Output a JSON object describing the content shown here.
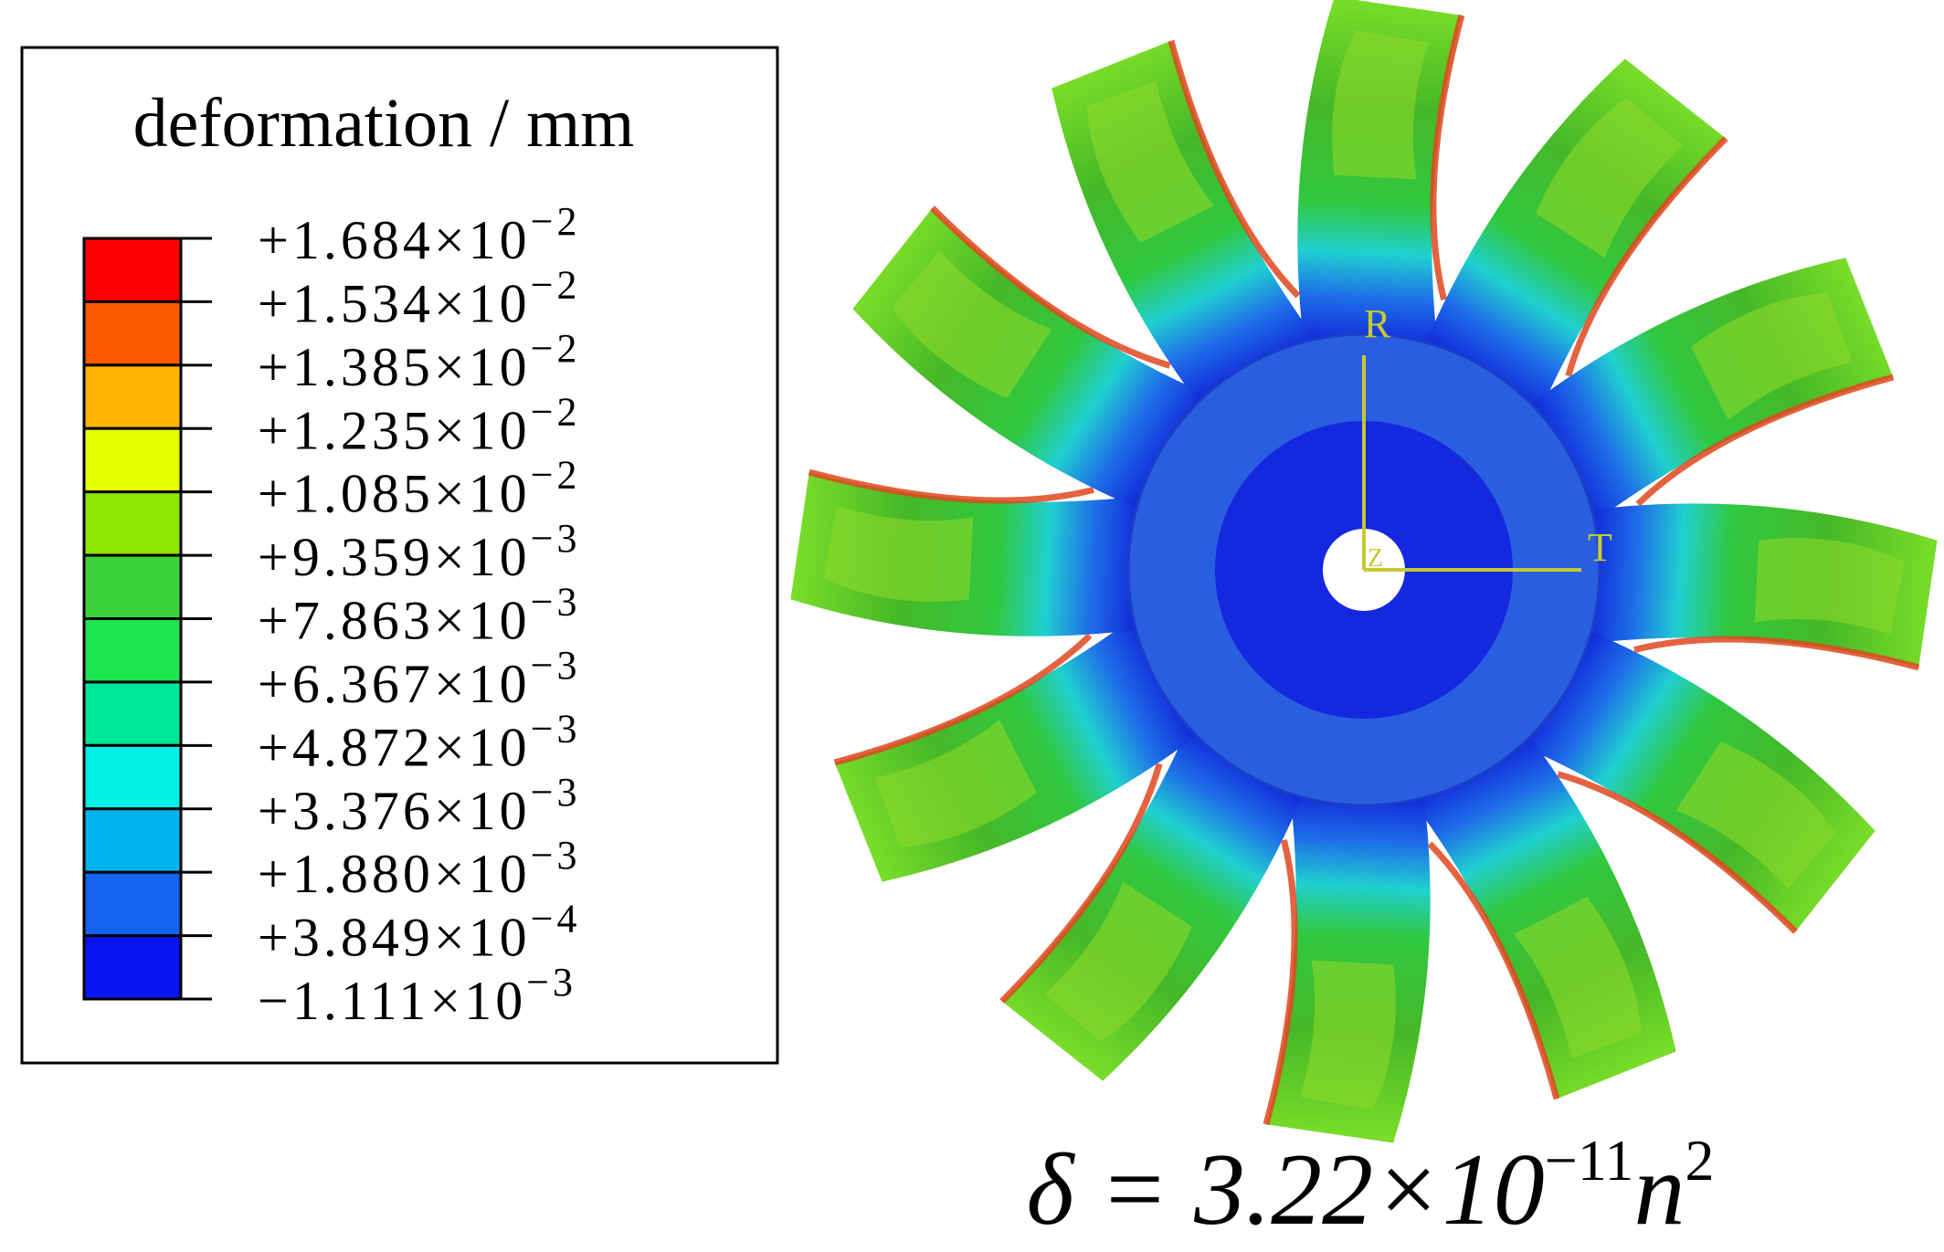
{
  "legend": {
    "title": "deformation / mm",
    "colors": [
      "#ff0000",
      "#ff5a00",
      "#ffb400",
      "#e6ff00",
      "#8ce600",
      "#3cd23c",
      "#1ee650",
      "#00e69a",
      "#00f0e6",
      "#00b4f0",
      "#1464f0",
      "#0a14f0"
    ],
    "labels": [
      {
        "base": "+1.684×10",
        "exponent": "−2"
      },
      {
        "base": "+1.534×10",
        "exponent": "−2"
      },
      {
        "base": "+1.385×10",
        "exponent": "−2"
      },
      {
        "base": "+1.235×10",
        "exponent": "−2"
      },
      {
        "base": "+1.085×10",
        "exponent": "−2"
      },
      {
        "base": "+9.359×10",
        "exponent": "−3"
      },
      {
        "base": "+7.863×10",
        "exponent": "−3"
      },
      {
        "base": "+6.367×10",
        "exponent": "−3"
      },
      {
        "base": "+4.872×10",
        "exponent": "−3"
      },
      {
        "base": "+3.376×10",
        "exponent": "−3"
      },
      {
        "base": "+1.880×10",
        "exponent": "−3"
      },
      {
        "base": "+3.849×10",
        "exponent": "−4"
      },
      {
        "base": "−1.111×10",
        "exponent": "−3"
      }
    ]
  },
  "axes": {
    "radial": "R",
    "tangential": "T",
    "axial": "Z"
  },
  "equation": {
    "lhs": "δ = 3.22×10",
    "exponent": "−11",
    "variable": "n",
    "power": "2"
  }
}
